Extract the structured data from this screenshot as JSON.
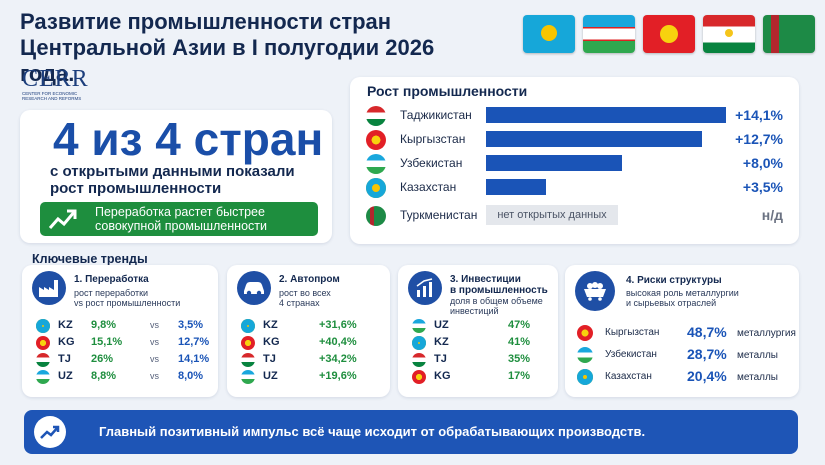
{
  "title": {
    "line1": "Развитие промышленности стран",
    "line2": "Центральной Азии в I полугодии 2026 года."
  },
  "logo": {
    "name": "CERR",
    "subtitle": "CENTER FOR ECONOMIC RESEARCH AND REFORMS"
  },
  "flags": [
    "kazakhstan-flag-icon",
    "uzbekistan-flag-icon",
    "kyrgyzstan-flag-icon",
    "tajikistan-flag-icon",
    "turkmenistan-flag-icon"
  ],
  "summary": {
    "headline": "4 из 4 стран",
    "subtitle": "с открытыми данными показали рост промышленности",
    "badge_line1": "Переработка растет быстрее",
    "badge_line2": "совокупной промышленности"
  },
  "growth": {
    "title": "Рост промышленности",
    "rows": [
      {
        "country": "Таджикистан",
        "value": "+14,1%",
        "num": 14.1
      },
      {
        "country": "Кыргызстан",
        "value": "+12,7%",
        "num": 12.7
      },
      {
        "country": "Узбекистан",
        "value": "+8,0%",
        "num": 8.0
      },
      {
        "country": "Казахстан",
        "value": "+3,5%",
        "num": 3.5
      },
      {
        "country": "Туркменистан",
        "nodata": "нет открытых данных",
        "value": "н/д"
      }
    ]
  },
  "trends": {
    "title": "Ключевые тренды",
    "t1": {
      "heading": "1. Переработка",
      "sub1": "рост переработки",
      "sub2": "vs рост промышленности",
      "rows": [
        {
          "code": "KZ",
          "a": "9,8%",
          "vs": "vs",
          "b": "3,5%"
        },
        {
          "code": "KG",
          "a": "15,1%",
          "vs": "vs",
          "b": "12,7%"
        },
        {
          "code": "TJ",
          "a": "26%",
          "vs": "vs",
          "b": "14,1%"
        },
        {
          "code": "UZ",
          "a": "8,8%",
          "vs": "vs",
          "b": "8,0%"
        }
      ]
    },
    "t2": {
      "heading": "2. Автопром",
      "sub1": "рост во всех",
      "sub2": "4 странах",
      "rows": [
        {
          "code": "KZ",
          "a": "+31,6%"
        },
        {
          "code": "KG",
          "a": "+40,4%"
        },
        {
          "code": "TJ",
          "a": "+34,2%"
        },
        {
          "code": "UZ",
          "a": "+19,6%"
        }
      ]
    },
    "t3": {
      "heading1": "3. Инвестиции",
      "heading2": "в промышленность",
      "sub1": "доля в общем объеме",
      "sub2": "инвестиций",
      "rows": [
        {
          "code": "UZ",
          "a": "47%"
        },
        {
          "code": "KZ",
          "a": "41%"
        },
        {
          "code": "TJ",
          "a": "35%"
        },
        {
          "code": "KG",
          "a": "17%"
        }
      ]
    },
    "t4": {
      "heading": "4. Риски структуры",
      "sub1": "высокая роль металлургии",
      "sub2": "и сырьевых отраслей",
      "rows": [
        {
          "country": "Кыргызстан",
          "pct": "48,7%",
          "type": "металлургия"
        },
        {
          "country": "Узбекистан",
          "pct": "28,7%",
          "type": "металлы"
        },
        {
          "country": "Казахстан",
          "pct": "20,4%",
          "type": "металлы"
        }
      ]
    }
  },
  "footer": {
    "text": "Главный позитивный импульс всё чаще исходит от обрабатывающих производств."
  }
}
